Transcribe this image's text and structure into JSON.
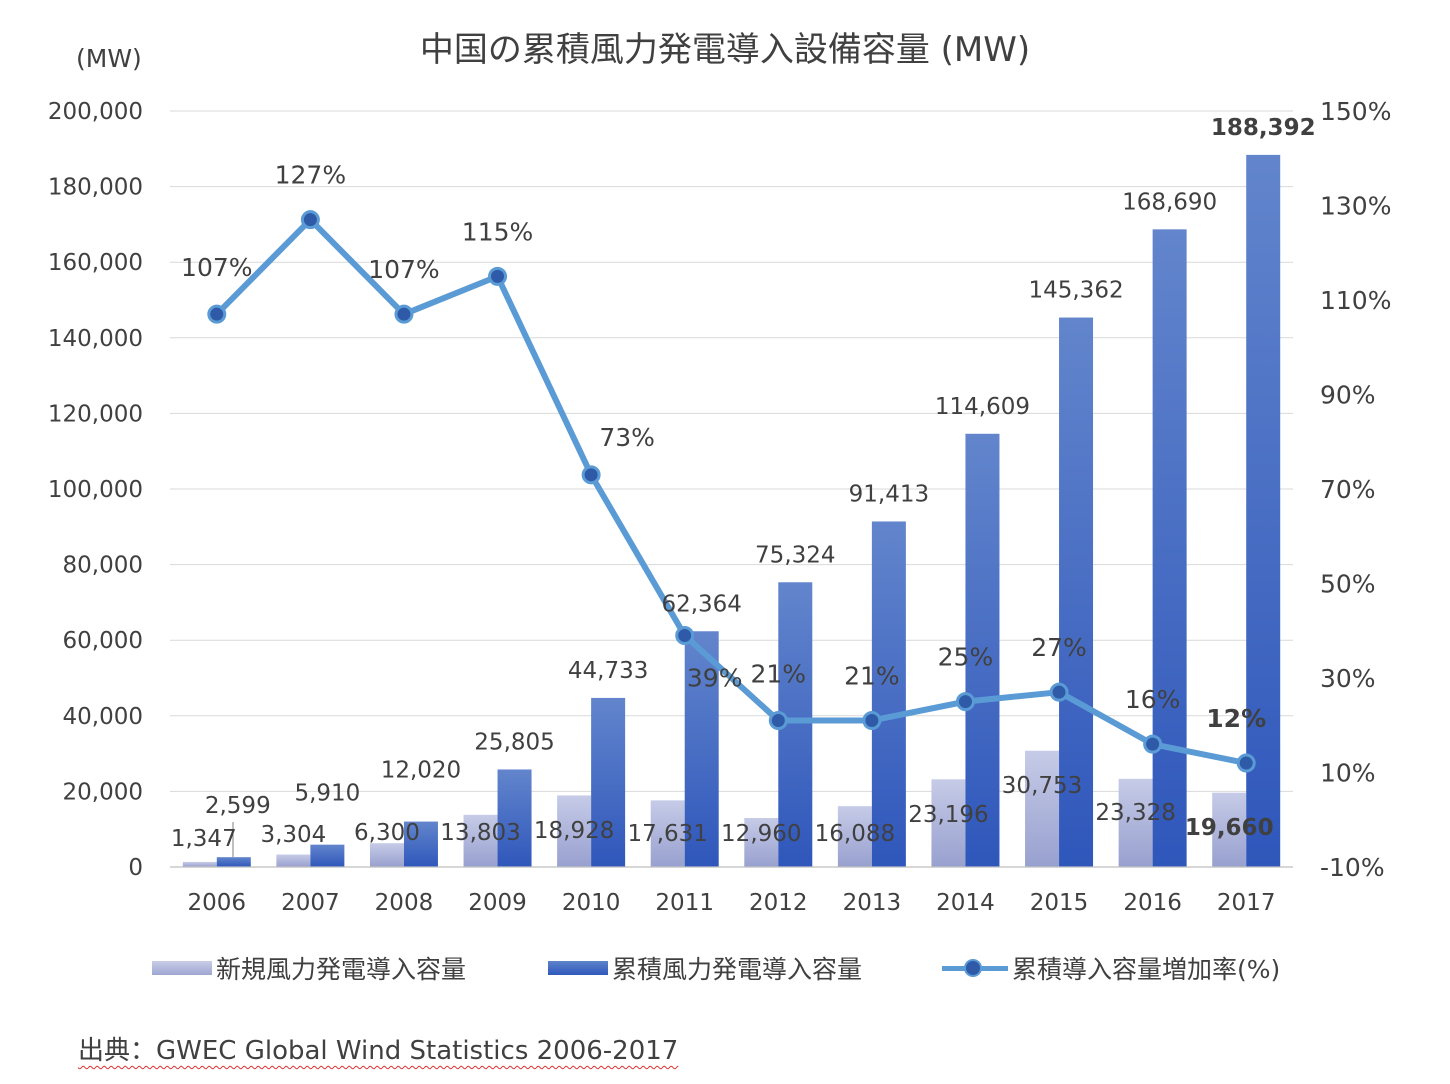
{
  "chart_data": {
    "type": "bar",
    "title": "中国の累積風力発電導入設備容量 (MW)",
    "ylabel": "(MW)",
    "ylim": [
      0,
      200000
    ],
    "y_ticks": [
      "0",
      "20,000",
      "40,000",
      "60,000",
      "80,000",
      "100,000",
      "120,000",
      "140,000",
      "160,000",
      "180,000",
      "200,000"
    ],
    "y2lim": [
      -10,
      150
    ],
    "y2_ticks": [
      "-10%",
      "10%",
      "30%",
      "50%",
      "70%",
      "90%",
      "110%",
      "130%",
      "150%"
    ],
    "categories": [
      "2006",
      "2007",
      "2008",
      "2009",
      "2010",
      "2011",
      "2012",
      "2013",
      "2014",
      "2015",
      "2016",
      "2017"
    ],
    "series": [
      {
        "name": "新規風力発電導入容量",
        "type": "bar",
        "color": "#a6add6",
        "values": [
          1347,
          3304,
          6300,
          13803,
          18928,
          17631,
          12960,
          16088,
          23196,
          30753,
          23328,
          19660
        ],
        "labels": [
          "1,347",
          "3,304",
          "6,300",
          "13,803",
          "18,928",
          "17,631",
          "12,960",
          "16,088",
          "23,196",
          "30,753",
          "23,328",
          "19,660"
        ]
      },
      {
        "name": "累積風力発電導入容量",
        "type": "bar",
        "color": "#3a63c4",
        "values": [
          2599,
          5910,
          12020,
          25805,
          44733,
          62364,
          75324,
          91413,
          114609,
          145362,
          168690,
          188392
        ],
        "labels": [
          "2,599",
          "5,910",
          "12,020",
          "25,805",
          "44,733",
          "62,364",
          "75,324",
          "91,413",
          "114,609",
          "145,362",
          "168,690",
          "188,392"
        ]
      },
      {
        "name": "累積導入容量増加率(%)",
        "type": "line",
        "axis": "right",
        "color": "#5b9bd5",
        "values": [
          107,
          127,
          107,
          115,
          73,
          39,
          21,
          21,
          25,
          27,
          16,
          12
        ],
        "labels": [
          "107%",
          "127%",
          "107%",
          "115%",
          "73%",
          "39%",
          "21%",
          "21%",
          "25%",
          "27%",
          "16%",
          "12%"
        ]
      }
    ],
    "legend_position": "bottom",
    "grid": true,
    "source": "出典：GWEC Global Wind Statistics 2006-2017"
  }
}
